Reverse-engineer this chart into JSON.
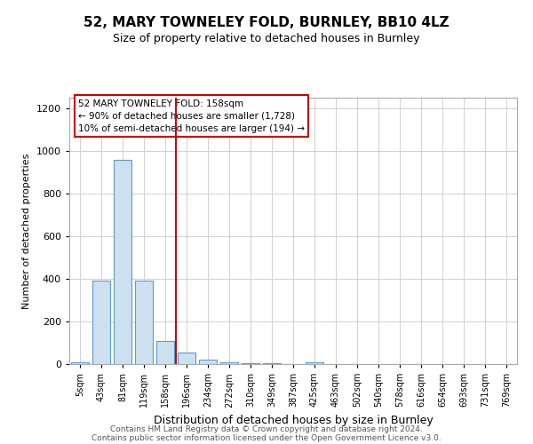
{
  "title": "52, MARY TOWNELEY FOLD, BURNLEY, BB10 4LZ",
  "subtitle": "Size of property relative to detached houses in Burnley",
  "xlabel": "Distribution of detached houses by size in Burnley",
  "ylabel": "Number of detached properties",
  "categories": [
    "5sqm",
    "43sqm",
    "81sqm",
    "119sqm",
    "158sqm",
    "196sqm",
    "234sqm",
    "272sqm",
    "310sqm",
    "349sqm",
    "387sqm",
    "425sqm",
    "463sqm",
    "502sqm",
    "540sqm",
    "578sqm",
    "616sqm",
    "654sqm",
    "693sqm",
    "731sqm",
    "769sqm"
  ],
  "values": [
    10,
    390,
    960,
    390,
    110,
    55,
    20,
    10,
    5,
    5,
    0,
    10,
    0,
    0,
    0,
    0,
    0,
    0,
    0,
    0,
    0
  ],
  "bar_color": "#cce0f0",
  "bar_edge_color": "#5b9bd5",
  "red_line_x": 4.5,
  "annotation_lines": [
    "52 MARY TOWNELEY FOLD: 158sqm",
    "← 90% of detached houses are smaller (1,728)",
    "10% of semi-detached houses are larger (194) →"
  ],
  "annotation_box_color": "#ffffff",
  "annotation_box_edge_color": "#cc0000",
  "red_line_color": "#cc0000",
  "ylim": [
    0,
    1250
  ],
  "yticks": [
    0,
    200,
    400,
    600,
    800,
    1000,
    1200
  ],
  "footer_line1": "Contains HM Land Registry data © Crown copyright and database right 2024.",
  "footer_line2": "Contains public sector information licensed under the Open Government Licence v3.0.",
  "bg_color": "#ffffff",
  "grid_color": "#d0d0d0",
  "title_fontsize": 11,
  "subtitle_fontsize": 9,
  "xlabel_fontsize": 9,
  "ylabel_fontsize": 8,
  "tick_fontsize": 7,
  "ann_fontsize": 7.5,
  "footer_fontsize": 6.5,
  "footer_color": "#555555"
}
